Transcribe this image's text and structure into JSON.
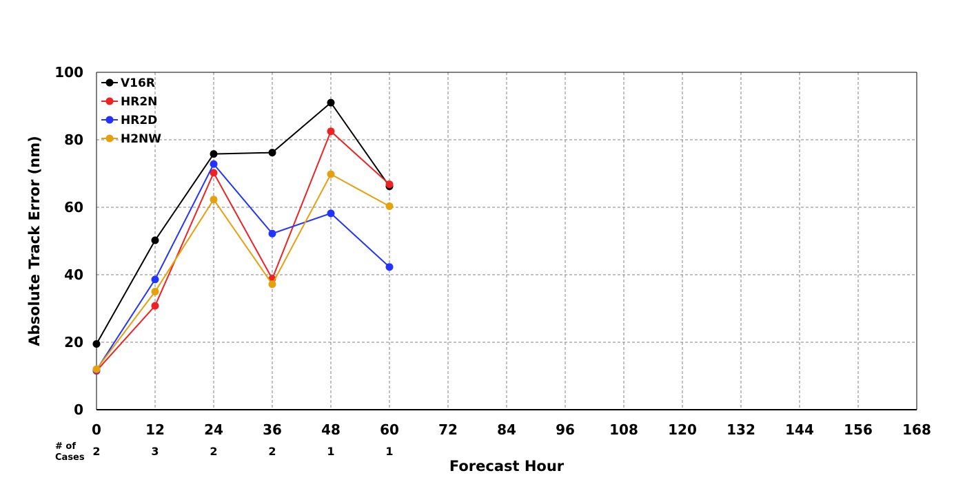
{
  "chart_data": {
    "type": "line",
    "title": "",
    "xlabel": "Forecast Hour",
    "ylabel": "Absolute Track Error (nm)",
    "xlim": [
      0,
      168
    ],
    "ylim": [
      0,
      100
    ],
    "x_ticks": [
      0,
      12,
      24,
      36,
      48,
      60,
      72,
      84,
      96,
      108,
      120,
      132,
      144,
      156,
      168
    ],
    "y_ticks": [
      0,
      20,
      40,
      60,
      80,
      100
    ],
    "grid": true,
    "legend_position": "top-left",
    "cases_label": [
      "# of",
      "Cases"
    ],
    "cases": [
      {
        "x": 0,
        "n": 2
      },
      {
        "x": 12,
        "n": 3
      },
      {
        "x": 24,
        "n": 2
      },
      {
        "x": 36,
        "n": 2
      },
      {
        "x": 48,
        "n": 1
      },
      {
        "x": 60,
        "n": 1
      }
    ],
    "series": [
      {
        "name": "V16R",
        "color": "#000000",
        "x": [
          0,
          12,
          24,
          36,
          48,
          60
        ],
        "values": [
          19.5,
          50.2,
          75.8,
          76.2,
          91.0,
          66.2
        ]
      },
      {
        "name": "HR2N",
        "color": "#ee2222",
        "x": [
          0,
          12,
          24,
          36,
          48,
          60
        ],
        "values": [
          11.5,
          30.8,
          70.2,
          38.8,
          82.5,
          66.8
        ]
      },
      {
        "name": "HR2D",
        "color": "#2233ff",
        "x": [
          0,
          12,
          24,
          36,
          48,
          60
        ],
        "values": [
          11.8,
          38.6,
          72.8,
          52.2,
          58.2,
          42.3
        ]
      },
      {
        "name": "H2NW",
        "color": "#e5a00d",
        "x": [
          0,
          12,
          24,
          36,
          48,
          60
        ],
        "values": [
          12.0,
          35.0,
          62.3,
          37.2,
          69.8,
          60.3
        ]
      }
    ]
  }
}
